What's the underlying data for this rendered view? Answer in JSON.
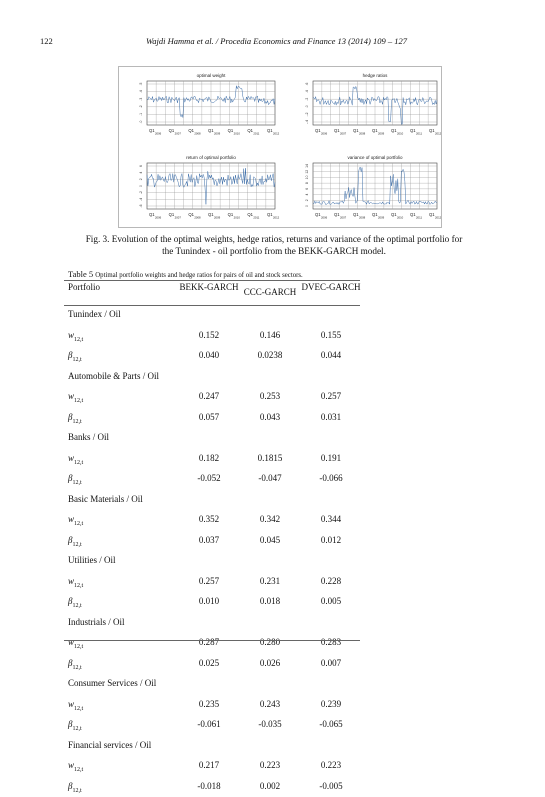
{
  "header": {
    "page_number": "122",
    "journal": "Wajdi Hamma et al. / Procedia Economics and Finance 13 (2014) 109 – 127"
  },
  "figure": {
    "panels": [
      {
        "title": "optimal weight",
        "yticks": [
          ".5",
          ".4",
          ".3",
          ".2",
          ".1",
          ".0"
        ]
      },
      {
        "title": "hedge ratios",
        "yticks": [
          ".6",
          ".4",
          ".2",
          ".0",
          "-.2",
          "-.4"
        ]
      },
      {
        "title": "return of optimal portfolio",
        "yticks": [
          "6",
          "4",
          "2",
          "0",
          "-2",
          "-4",
          "-6"
        ]
      },
      {
        "title": "variance of optimal portfolio",
        "yticks": [
          "14",
          "12",
          "10",
          "8",
          "6",
          "4",
          "2",
          "0"
        ]
      }
    ],
    "xticks": [
      "Q1",
      "Q1",
      "Q1",
      "Q1",
      "Q1",
      "Q1",
      "Q1"
    ],
    "xyears": [
      "2006",
      "2007",
      "2008",
      "2009",
      "2010",
      "2011",
      "2012"
    ],
    "caption": "Fig. 3. Evolution of the optimal weights, hedge ratios, returns and variance of the optimal portfolio for the Tunindex - oil portfolio from the BEKK-GARCH model.",
    "line_color": "#3c6da8"
  },
  "table": {
    "label": "Table 5",
    "title": "Optimal portfolio weights and hedge ratios for pairs of oil and stock sectors.",
    "columns": {
      "portfolio": "Portfolio",
      "bekk": "BEKK-GARCH",
      "ccc": "CCC-GARCH",
      "dvec": "DVEC-GARCH"
    },
    "row_symbol_w": "w",
    "row_symbol_b": "β",
    "row_sub": "12,t",
    "sections": [
      {
        "name": "Tunindex / Oil",
        "w": [
          "0.152",
          "0.146",
          "0.155"
        ],
        "b": [
          "0.040",
          "0.0238",
          "0.044"
        ]
      },
      {
        "name": "Automobile & Parts / Oil",
        "w": [
          "0.247",
          "0.253",
          "0.257"
        ],
        "b": [
          "0.057",
          "0.043",
          "0.031"
        ]
      },
      {
        "name": "Banks / Oil",
        "w": [
          "0.182",
          "0.1815",
          "0.191"
        ],
        "b": [
          "-0.052",
          "-0.047",
          "-0.066"
        ]
      },
      {
        "name": "Basic Materials / Oil",
        "w": [
          "0.352",
          "0.342",
          "0.344"
        ],
        "b": [
          "0.037",
          "0.045",
          "0.012"
        ]
      },
      {
        "name": "Utilities / Oil",
        "w": [
          "0.257",
          "0.231",
          "0.228"
        ],
        "b": [
          "0.010",
          "0.018",
          "0.005"
        ]
      },
      {
        "name": "Industrials / Oil",
        "w": [
          "0.287",
          "0.280",
          "0.283"
        ],
        "b": [
          "0.025",
          "0.026",
          "0.007"
        ]
      },
      {
        "name": "Consumer Services / Oil",
        "w": [
          "0.235",
          "0.243",
          "0.239"
        ],
        "b": [
          "-0.061",
          "-0.035",
          "-0.065"
        ]
      },
      {
        "name": "Financial services / Oil",
        "w": [
          "0.217",
          "0.223",
          "0.223"
        ],
        "b": [
          "-0.018",
          "0.002",
          "-0.005"
        ]
      }
    ]
  }
}
